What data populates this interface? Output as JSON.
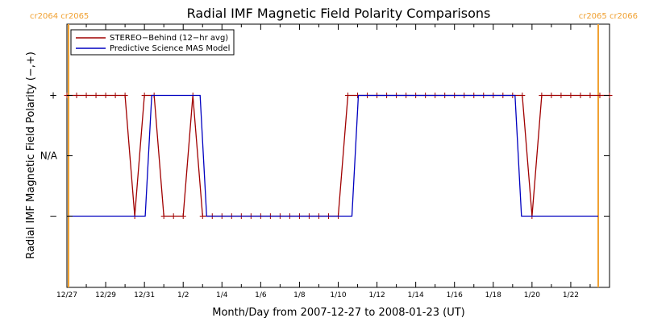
{
  "chart_data": {
    "type": "line",
    "title": "Radial IMF Magnetic Field Polarity Comparisons",
    "xlabel": "Month/Day from 2007-12-27 to 2008-01-23 (UT)",
    "ylabel": "Radial IMF Magnetic Field Polarity (−,+)",
    "xlim": [
      "2007-12-27T00:00",
      "2008-01-24T00:00"
    ],
    "x_tick_labels": [
      "12/27",
      "12/29",
      "12/31",
      "1/2",
      "1/4",
      "1/6",
      "1/8",
      "1/10",
      "1/12",
      "1/14",
      "1/16",
      "1/18",
      "1/20",
      "1/22"
    ],
    "y_tick_labels": [
      "−",
      "N/A",
      "+"
    ],
    "ylim": [
      -2,
      2
    ],
    "carrington_labels": {
      "left": "cr2064 cr2065",
      "right": "cr2065 cr2066",
      "boundaries": [
        "2007-12-27T02:00",
        "2008-01-23T10:00"
      ]
    },
    "line_colors": {
      "stereo": "#a00000",
      "model": "#0000c0",
      "carrington": "#f0a030"
    },
    "legend_position": "top-left",
    "series": [
      {
        "name": "STEREO−Behind (12−hr avg)",
        "color": "#a00000",
        "marker": "+",
        "points": [
          [
            "2007-12-27T00:00",
            1
          ],
          [
            "2007-12-27T12:00",
            1
          ],
          [
            "2007-12-28T00:00",
            1
          ],
          [
            "2007-12-28T12:00",
            1
          ],
          [
            "2007-12-29T00:00",
            1
          ],
          [
            "2007-12-29T12:00",
            1
          ],
          [
            "2007-12-30T00:00",
            1
          ],
          [
            "2007-12-30T12:00",
            -1
          ],
          [
            "2007-12-31T00:00",
            1
          ],
          [
            "2007-12-31T12:00",
            1
          ],
          [
            "2008-01-01T00:00",
            -1
          ],
          [
            "2008-01-01T12:00",
            -1
          ],
          [
            "2008-01-02T00:00",
            -1
          ],
          [
            "2008-01-02T12:00",
            1
          ],
          [
            "2008-01-03T00:00",
            -1
          ],
          [
            "2008-01-03T12:00",
            -1
          ],
          [
            "2008-01-04T00:00",
            -1
          ],
          [
            "2008-01-04T12:00",
            -1
          ],
          [
            "2008-01-05T00:00",
            -1
          ],
          [
            "2008-01-05T12:00",
            -1
          ],
          [
            "2008-01-06T00:00",
            -1
          ],
          [
            "2008-01-06T12:00",
            -1
          ],
          [
            "2008-01-07T00:00",
            -1
          ],
          [
            "2008-01-07T12:00",
            -1
          ],
          [
            "2008-01-08T00:00",
            -1
          ],
          [
            "2008-01-08T12:00",
            -1
          ],
          [
            "2008-01-09T00:00",
            -1
          ],
          [
            "2008-01-09T12:00",
            -1
          ],
          [
            "2008-01-10T00:00",
            -1
          ],
          [
            "2008-01-10T12:00",
            1
          ],
          [
            "2008-01-11T00:00",
            1
          ],
          [
            "2008-01-11T12:00",
            1
          ],
          [
            "2008-01-12T00:00",
            1
          ],
          [
            "2008-01-12T12:00",
            1
          ],
          [
            "2008-01-13T00:00",
            1
          ],
          [
            "2008-01-13T12:00",
            1
          ],
          [
            "2008-01-14T00:00",
            1
          ],
          [
            "2008-01-14T12:00",
            1
          ],
          [
            "2008-01-15T00:00",
            1
          ],
          [
            "2008-01-15T12:00",
            1
          ],
          [
            "2008-01-16T00:00",
            1
          ],
          [
            "2008-01-16T12:00",
            1
          ],
          [
            "2008-01-17T00:00",
            1
          ],
          [
            "2008-01-17T12:00",
            1
          ],
          [
            "2008-01-18T00:00",
            1
          ],
          [
            "2008-01-18T12:00",
            1
          ],
          [
            "2008-01-19T00:00",
            1
          ],
          [
            "2008-01-19T12:00",
            1
          ],
          [
            "2008-01-20T00:00",
            -1
          ],
          [
            "2008-01-20T12:00",
            1
          ],
          [
            "2008-01-21T00:00",
            1
          ],
          [
            "2008-01-21T12:00",
            1
          ],
          [
            "2008-01-22T00:00",
            1
          ],
          [
            "2008-01-22T12:00",
            1
          ],
          [
            "2008-01-23T00:00",
            1
          ],
          [
            "2008-01-23T12:00",
            1
          ],
          [
            "2008-01-24T00:00",
            1
          ]
        ]
      },
      {
        "name": "Predictive Science MAS Model",
        "color": "#0000c0",
        "marker": "none",
        "points": [
          [
            "2007-12-27T02:00",
            -1
          ],
          [
            "2007-12-31T01:00",
            -1
          ],
          [
            "2007-12-31T09:00",
            1
          ],
          [
            "2008-01-02T21:00",
            1
          ],
          [
            "2008-01-03T05:00",
            -1
          ],
          [
            "2008-01-10T17:00",
            -1
          ],
          [
            "2008-01-11T01:00",
            1
          ],
          [
            "2008-01-19T03:00",
            1
          ],
          [
            "2008-01-19T11:00",
            -1
          ],
          [
            "2008-01-23T10:00",
            -1
          ]
        ]
      }
    ]
  }
}
